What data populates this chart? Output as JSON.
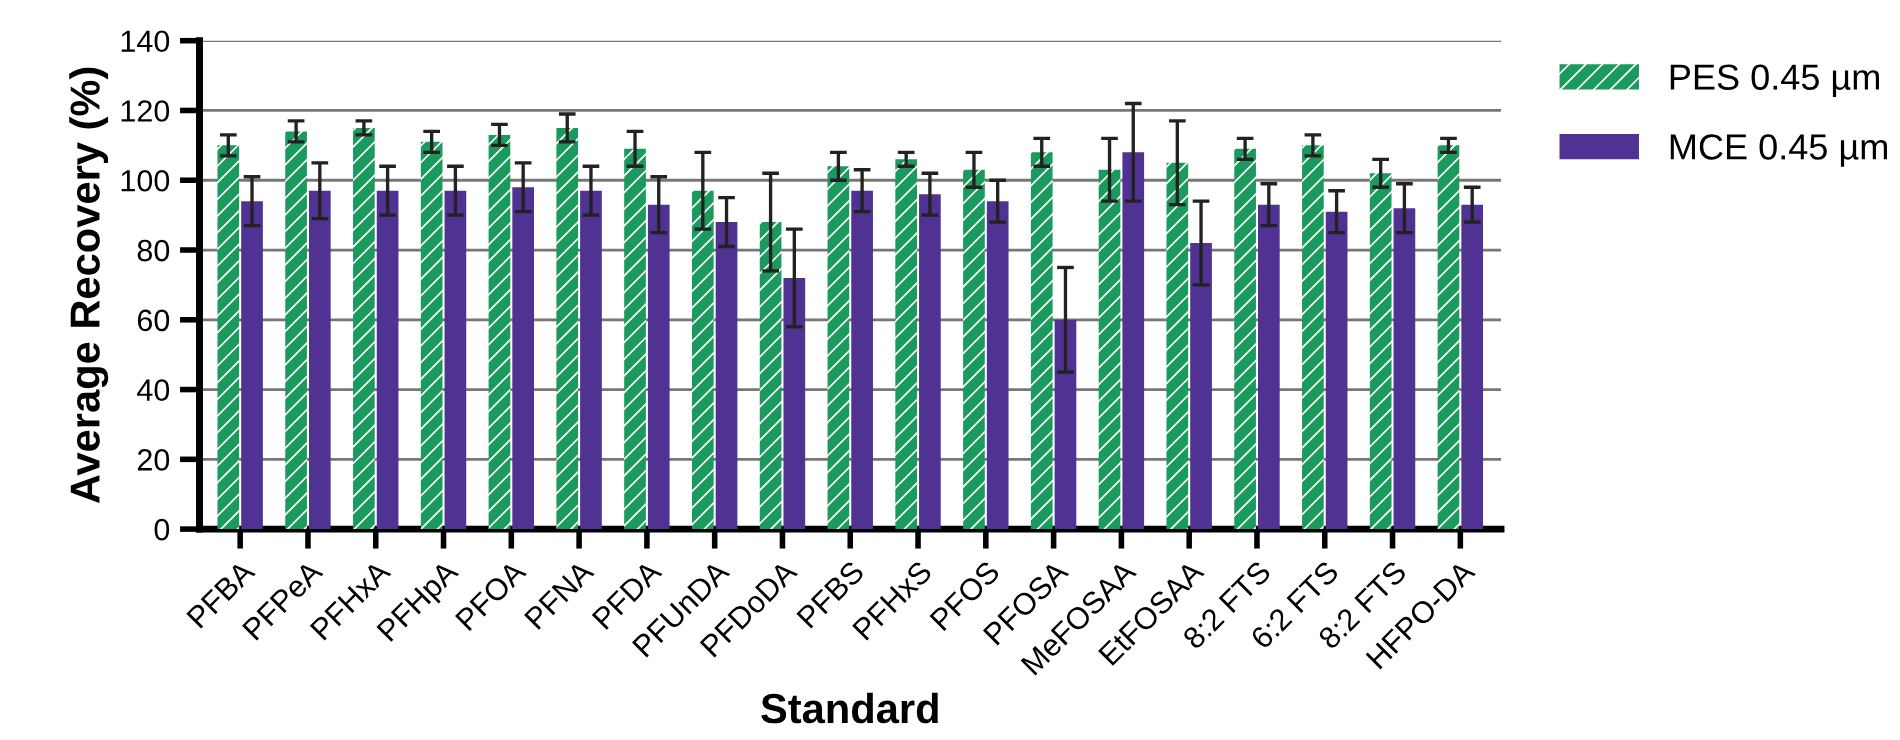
{
  "chart_data": {
    "type": "bar",
    "xlabel": "Standard",
    "ylabel": "Average Recovery (%)",
    "categories": [
      "PFBA",
      "PFPeA",
      "PFHxA",
      "PFHpA",
      "PFOA",
      "PFNA",
      "PFDA",
      "PFUnDA",
      "PFDoDA",
      "PFBS",
      "PFHxS",
      "PFOS",
      "PFOSA",
      "MeFOSAA",
      "EtFOSAA",
      "8:2 FTS",
      "6:2 FTS",
      "8:2 FTS",
      "HFPO-DA"
    ],
    "series": [
      {
        "name": "PES 0.45 µm",
        "color": "#1b9a5e",
        "values": [
          110,
          114,
          115,
          111,
          113,
          115,
          109,
          97,
          88,
          104,
          106,
          103,
          108,
          103,
          105,
          109,
          110,
          102,
          110
        ],
        "errors": [
          3,
          3,
          2,
          3,
          3,
          4,
          5,
          11,
          14,
          4,
          2,
          5,
          4,
          9,
          12,
          3,
          3,
          4,
          2
        ]
      },
      {
        "name": "MCE 0.45 µm",
        "color": "#4f3292",
        "values": [
          94,
          97,
          97,
          97,
          98,
          97,
          93,
          88,
          72,
          97,
          96,
          94,
          60,
          108,
          82,
          93,
          91,
          92,
          93
        ],
        "errors": [
          7,
          8,
          7,
          7,
          7,
          7,
          8,
          7,
          14,
          6,
          6,
          6,
          15,
          14,
          12,
          6,
          6,
          7,
          5
        ]
      }
    ],
    "ylim": [
      0,
      140
    ],
    "yticks": [
      0,
      20,
      40,
      60,
      80,
      100,
      120,
      140
    ],
    "grid": "y",
    "legend": "top right"
  }
}
